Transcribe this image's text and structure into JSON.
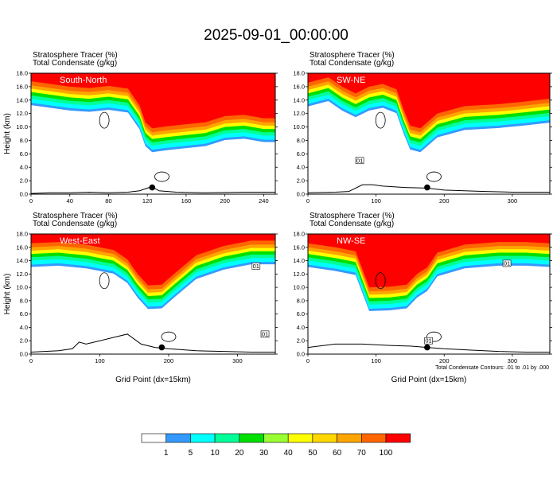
{
  "figure": {
    "title": "2025-09-01_00:00:00",
    "contour_note": "Total Condensate Contours: .01 to .01 by .000"
  },
  "colors": {
    "levels": [
      {
        "label": "",
        "color": "#ffffff"
      },
      {
        "label": "1",
        "color": "#3399ff"
      },
      {
        "label": "5",
        "color": "#00ffff"
      },
      {
        "label": "10",
        "color": "#00ff99"
      },
      {
        "label": "20",
        "color": "#00e000"
      },
      {
        "label": "30",
        "color": "#99ff33"
      },
      {
        "label": "40",
        "color": "#ffff00"
      },
      {
        "label": "50",
        "color": "#ffd700"
      },
      {
        "label": "60",
        "color": "#ffa500"
      },
      {
        "label": "70",
        "color": "#ff6600"
      },
      {
        "label": "100",
        "color": "#ff0000"
      }
    ]
  },
  "chart_data": [
    {
      "type": "heatmap",
      "panel_label": "South-North",
      "header_line1": "Stratosphere Tracer    (%)",
      "header_line2": "Total Condensate    (g/kg)",
      "ylabel": "Height (km)",
      "xlabel": "",
      "xlim": [
        0,
        252
      ],
      "ylim": [
        0,
        18
      ],
      "xticks": [
        "0",
        "40",
        "80",
        "120",
        "160",
        "200",
        "240"
      ],
      "yticks": [
        "0.0",
        "2.0",
        "4.0",
        "6.0",
        "8.0",
        "10.0",
        "12.0",
        "14.0",
        "16.0",
        "18.0"
      ],
      "tracer_base_km": [
        [
          0,
          13.6
        ],
        [
          20,
          13.2
        ],
        [
          40,
          12.8
        ],
        [
          60,
          12.6
        ],
        [
          80,
          12.9
        ],
        [
          100,
          12.5
        ],
        [
          112,
          10.0
        ],
        [
          118,
          7.5
        ],
        [
          125,
          6.6
        ],
        [
          140,
          6.9
        ],
        [
          160,
          7.2
        ],
        [
          180,
          7.5
        ],
        [
          200,
          8.4
        ],
        [
          220,
          8.6
        ],
        [
          240,
          8.1
        ],
        [
          252,
          8.1
        ]
      ],
      "terrain_km": [
        [
          0,
          0.1
        ],
        [
          20,
          0.2
        ],
        [
          40,
          0.2
        ],
        [
          60,
          0.3
        ],
        [
          80,
          0.2
        ],
        [
          100,
          0.3
        ],
        [
          112,
          0.5
        ],
        [
          120,
          0.9
        ],
        [
          125,
          1.1
        ],
        [
          132,
          0.5
        ],
        [
          150,
          0.3
        ],
        [
          180,
          0.2
        ],
        [
          220,
          0.3
        ],
        [
          252,
          0.3
        ]
      ],
      "marker": [
        125,
        1.0
      ]
    },
    {
      "type": "heatmap",
      "panel_label": "SW-NE",
      "header_line1": "Stratosphere Tracer    (%)",
      "header_line2": "Total Condensate    (g/kg)",
      "ylabel": "",
      "xlabel": "",
      "xlim": [
        0,
        355
      ],
      "ylim": [
        0,
        18
      ],
      "xticks": [
        "0",
        "100",
        "200",
        "300"
      ],
      "yticks": [
        "0.0",
        "2.0",
        "4.0",
        "6.0",
        "8.0",
        "10.0",
        "12.0",
        "14.0",
        "16.0",
        "18.0"
      ],
      "tracer_base_km": [
        [
          0,
          13.4
        ],
        [
          30,
          14.2
        ],
        [
          50,
          12.8
        ],
        [
          70,
          11.8
        ],
        [
          90,
          12.8
        ],
        [
          110,
          13.2
        ],
        [
          130,
          12.4
        ],
        [
          140,
          9.5
        ],
        [
          150,
          7.0
        ],
        [
          165,
          6.6
        ],
        [
          190,
          8.8
        ],
        [
          230,
          9.9
        ],
        [
          280,
          10.2
        ],
        [
          320,
          10.6
        ],
        [
          355,
          11.0
        ]
      ],
      "terrain_km": [
        [
          0,
          0.2
        ],
        [
          40,
          0.3
        ],
        [
          60,
          0.4
        ],
        [
          70,
          0.9
        ],
        [
          80,
          1.4
        ],
        [
          95,
          1.4
        ],
        [
          110,
          1.2
        ],
        [
          140,
          1.0
        ],
        [
          175,
          0.9
        ],
        [
          200,
          0.6
        ],
        [
          260,
          0.4
        ],
        [
          300,
          0.3
        ],
        [
          355,
          0.3
        ]
      ],
      "marker": [
        175,
        1.0
      ],
      "box_labels": [
        [
          76,
          5.0,
          "01"
        ]
      ]
    },
    {
      "type": "heatmap",
      "panel_label": "West-East",
      "header_line1": "Stratosphere Tracer    (%)",
      "header_line2": "Total Condensate    (g/kg)",
      "ylabel": "Height (km)",
      "xlabel": "Grid Point  (dx=15km)",
      "xlim": [
        0,
        355
      ],
      "ylim": [
        0,
        18
      ],
      "xticks": [
        "0",
        "100",
        "200",
        "300"
      ],
      "yticks": [
        "0.0",
        "2.0",
        "4.0",
        "6.0",
        "8.0",
        "10.0",
        "12.0",
        "14.0",
        "16.0",
        "18.0"
      ],
      "tracer_base_km": [
        [
          0,
          13.4
        ],
        [
          40,
          13.6
        ],
        [
          80,
          13.2
        ],
        [
          100,
          12.8
        ],
        [
          120,
          12.4
        ],
        [
          140,
          11.0
        ],
        [
          155,
          8.8
        ],
        [
          170,
          7.1
        ],
        [
          190,
          7.2
        ],
        [
          210,
          9.0
        ],
        [
          240,
          11.6
        ],
        [
          280,
          13.0
        ],
        [
          320,
          13.8
        ],
        [
          355,
          13.8
        ]
      ],
      "terrain_km": [
        [
          0,
          0.3
        ],
        [
          40,
          0.5
        ],
        [
          60,
          0.8
        ],
        [
          70,
          1.8
        ],
        [
          80,
          1.5
        ],
        [
          100,
          2.0
        ],
        [
          120,
          2.5
        ],
        [
          140,
          3.0
        ],
        [
          160,
          1.5
        ],
        [
          180,
          1.0
        ],
        [
          200,
          0.8
        ],
        [
          240,
          0.5
        ],
        [
          280,
          0.4
        ],
        [
          320,
          0.3
        ],
        [
          355,
          0.3
        ]
      ],
      "marker": [
        190,
        1.0
      ],
      "box_labels": [
        [
          327,
          13.2,
          "01"
        ],
        [
          340,
          3.0,
          "01"
        ]
      ]
    },
    {
      "type": "heatmap",
      "panel_label": "NW-SE",
      "header_line1": "Stratosphere Tracer    (%)",
      "header_line2": "Total Condensate    (g/kg)",
      "ylabel": "",
      "xlabel": "Grid Point  (dx=15km)",
      "xlim": [
        0,
        355
      ],
      "ylim": [
        0,
        18
      ],
      "xticks": [
        "0",
        "100",
        "200",
        "300"
      ],
      "yticks": [
        "0.0",
        "2.0",
        "4.0",
        "6.0",
        "8.0",
        "10.0",
        "12.0",
        "14.0",
        "16.0",
        "18.0"
      ],
      "tracer_base_km": [
        [
          0,
          13.4
        ],
        [
          40,
          12.8
        ],
        [
          70,
          12.2
        ],
        [
          80,
          9.5
        ],
        [
          90,
          6.8
        ],
        [
          120,
          6.9
        ],
        [
          145,
          7.2
        ],
        [
          160,
          8.8
        ],
        [
          175,
          9.8
        ],
        [
          190,
          12.0
        ],
        [
          230,
          13.2
        ],
        [
          280,
          13.6
        ],
        [
          320,
          13.6
        ],
        [
          355,
          13.4
        ]
      ],
      "terrain_km": [
        [
          0,
          1.0
        ],
        [
          40,
          1.5
        ],
        [
          80,
          1.5
        ],
        [
          120,
          1.3
        ],
        [
          150,
          1.2
        ],
        [
          175,
          1.0
        ],
        [
          200,
          0.8
        ],
        [
          240,
          0.6
        ],
        [
          280,
          0.4
        ],
        [
          320,
          0.3
        ],
        [
          355,
          0.3
        ]
      ],
      "marker": [
        175,
        1.0
      ],
      "box_labels": [
        [
          177,
          2.0,
          "01"
        ],
        [
          292,
          13.6,
          "01"
        ]
      ]
    }
  ]
}
